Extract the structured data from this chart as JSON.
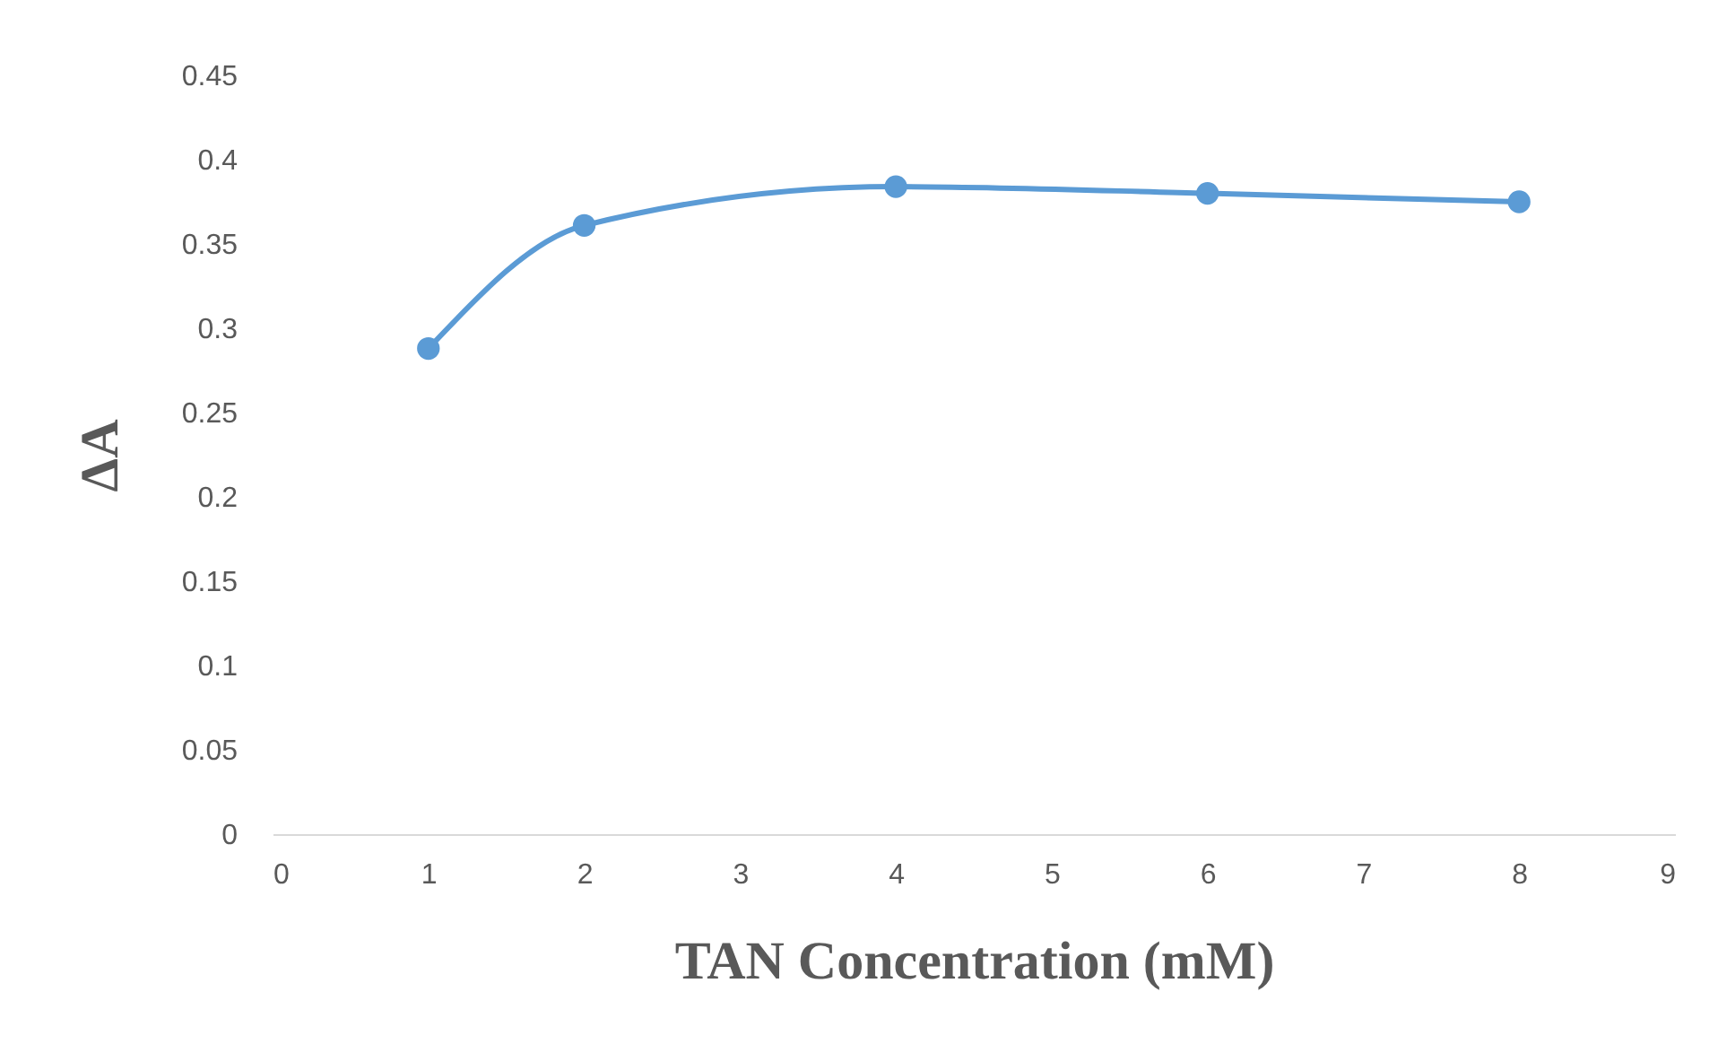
{
  "chart_data": {
    "type": "line",
    "xlabel": "TAN Concentration (mM)",
    "ylabel": "ΔA",
    "x": [
      1,
      2,
      4,
      6,
      8
    ],
    "series": [
      {
        "color": "#5b9bd5",
        "values": [
          0.288,
          0.361,
          0.384,
          0.38,
          0.375
        ]
      }
    ],
    "xlim": [
      0,
      9
    ],
    "xticks": [
      0,
      1,
      2,
      3,
      4,
      5,
      6,
      7,
      8,
      9
    ],
    "ylim": [
      0,
      0.45
    ],
    "yticks": [
      0,
      0.05,
      0.1,
      0.15,
      0.2,
      0.25,
      0.3,
      0.35,
      0.4,
      0.45
    ],
    "grid": false,
    "legend": false,
    "marker": "circle",
    "line_style": "solid"
  }
}
